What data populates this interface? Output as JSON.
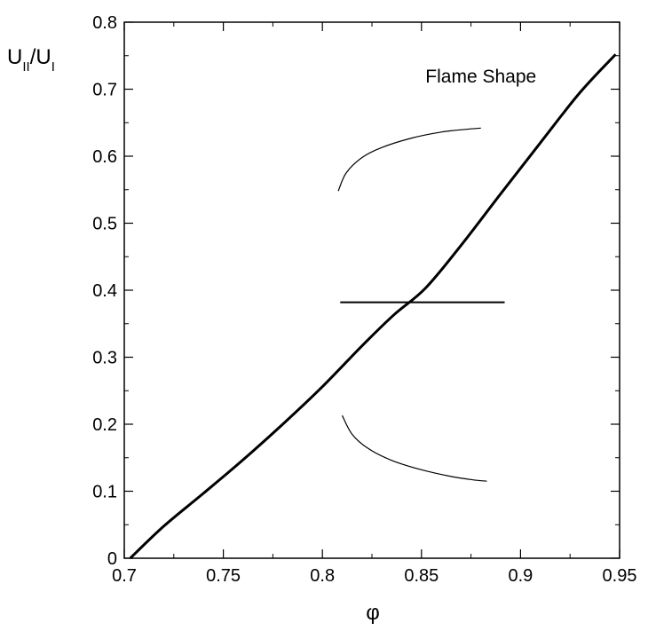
{
  "chart_data": {
    "type": "line",
    "title": "",
    "xlabel": "φ",
    "ylabel": {
      "main": "U",
      "sub1": "II",
      "slash": "/U",
      "sub2": "I"
    },
    "xlim": [
      0.7,
      0.95
    ],
    "ylim": [
      0,
      0.8
    ],
    "x_ticks": [
      "0.7",
      "0.75",
      "0.8",
      "0.85",
      "0.9",
      "0.95"
    ],
    "x_tick_values": [
      0.7,
      0.75,
      0.8,
      0.85,
      0.9,
      0.95
    ],
    "y_ticks": [
      "0",
      "0.1",
      "0.2",
      "0.3",
      "0.4",
      "0.5",
      "0.6",
      "0.7",
      "0.8"
    ],
    "y_tick_values": [
      0,
      0.1,
      0.2,
      0.3,
      0.4,
      0.5,
      0.6,
      0.7,
      0.8
    ],
    "grid": false,
    "series": [
      {
        "x": [
          0.703,
          0.72,
          0.74,
          0.76,
          0.78,
          0.8,
          0.82,
          0.836,
          0.852,
          0.87,
          0.89,
          0.91,
          0.93,
          0.948
        ],
        "y": [
          0.0,
          0.048,
          0.097,
          0.147,
          0.2,
          0.256,
          0.317,
          0.363,
          0.403,
          0.467,
          0.544,
          0.62,
          0.695,
          0.752
        ]
      }
    ],
    "annotation": {
      "text": "Flame Shape",
      "x": 0.88,
      "y": 0.71,
      "sketch_upper_curve": {
        "x": [
          0.808,
          0.812,
          0.82,
          0.83,
          0.845,
          0.86,
          0.872,
          0.88
        ],
        "y": [
          0.548,
          0.575,
          0.598,
          0.613,
          0.627,
          0.636,
          0.64,
          0.642
        ]
      },
      "sketch_flat_line": {
        "x": [
          0.809,
          0.892
        ],
        "y": [
          0.382,
          0.382
        ]
      },
      "sketch_lower_curve": {
        "x": [
          0.81,
          0.815,
          0.823,
          0.835,
          0.85,
          0.865,
          0.876,
          0.883
        ],
        "y": [
          0.213,
          0.185,
          0.164,
          0.146,
          0.132,
          0.122,
          0.117,
          0.115
        ]
      }
    }
  }
}
